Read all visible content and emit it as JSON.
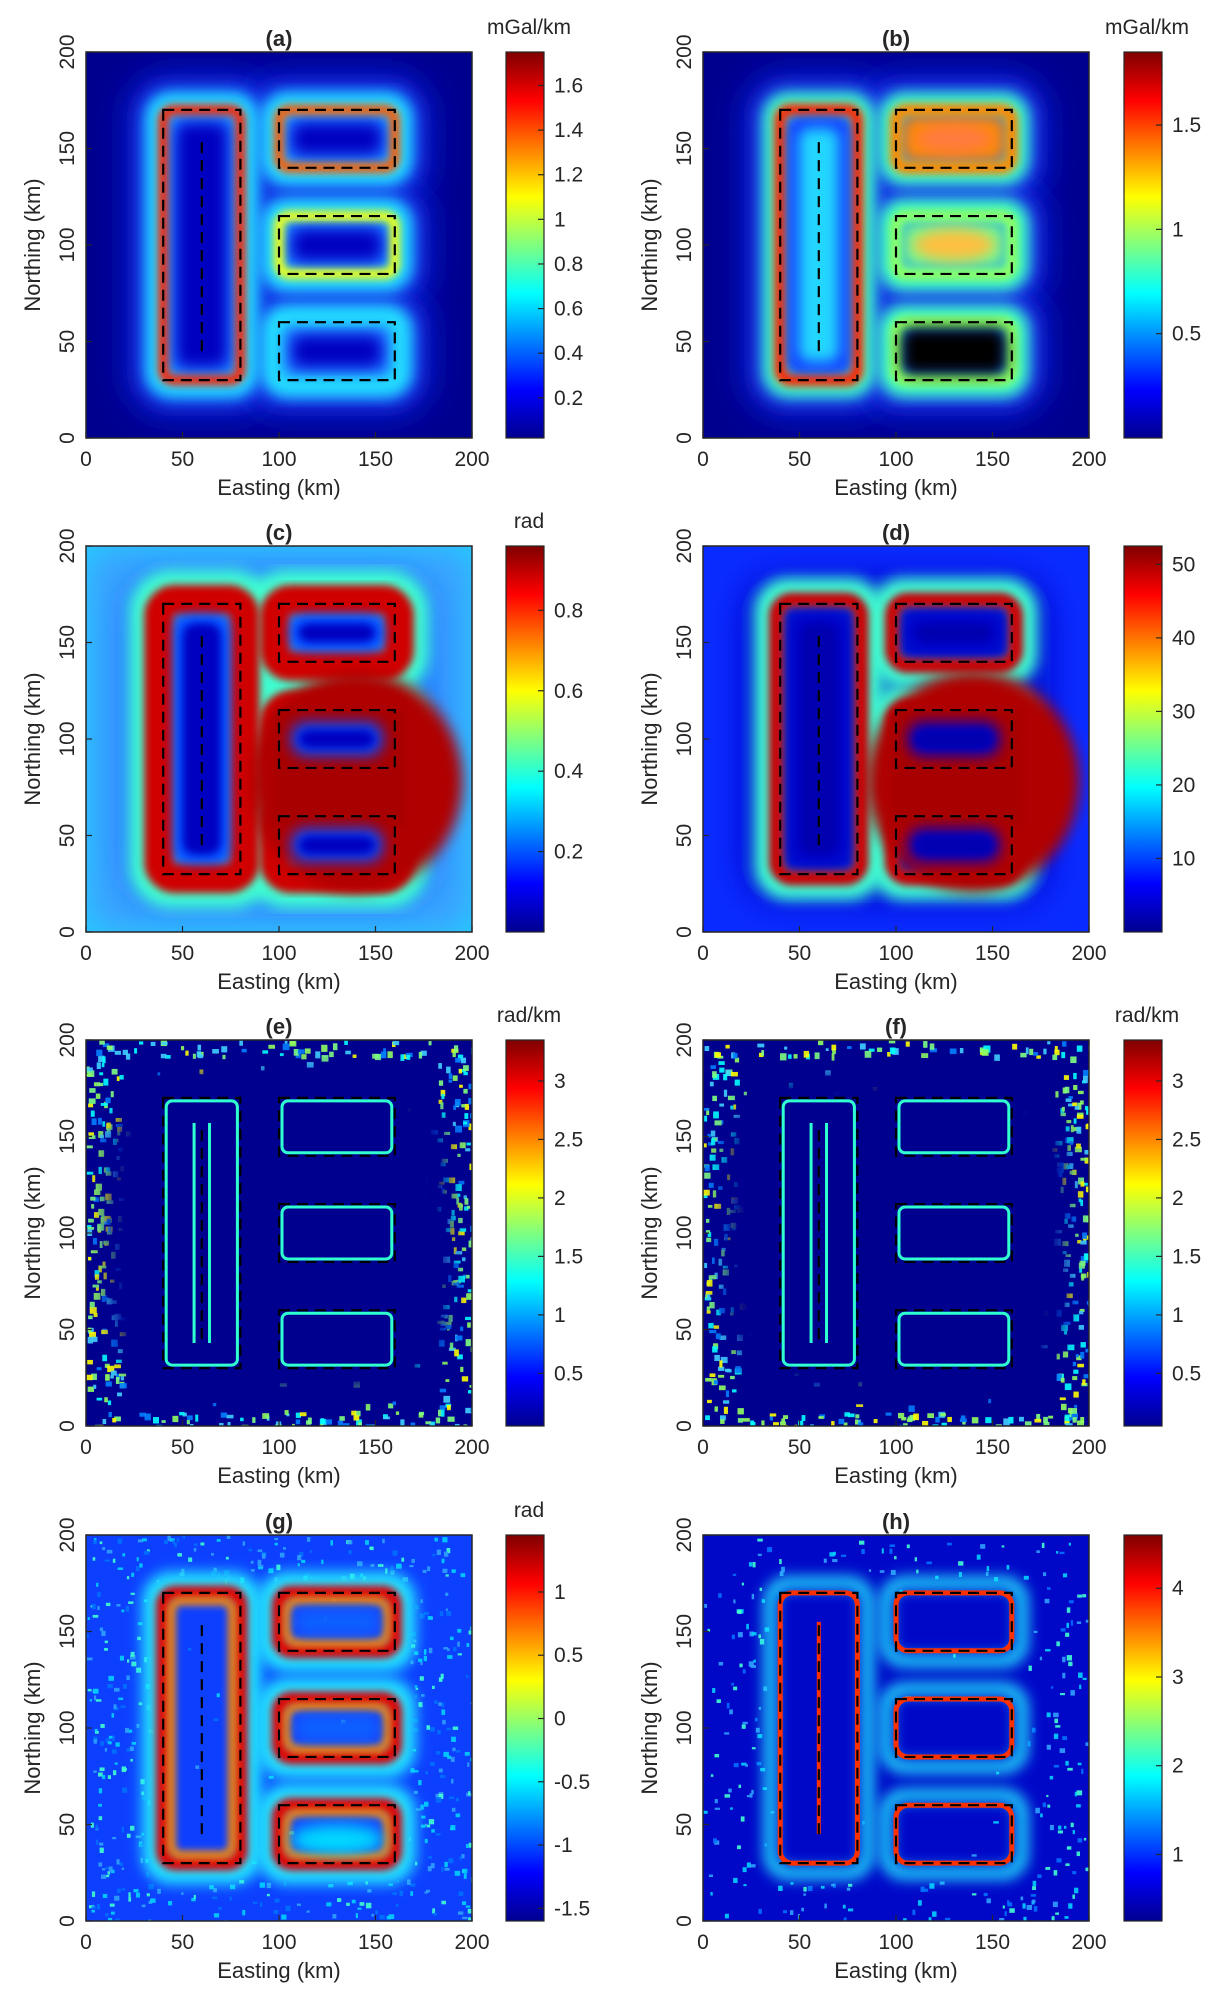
{
  "figure": {
    "xlabel": "Easting (km)",
    "ylabel": "Northing (km)",
    "xticks": [
      "0",
      "50",
      "100",
      "150",
      "200"
    ],
    "yticks": [
      "0",
      "50",
      "100",
      "150",
      "200"
    ]
  },
  "chart_data": [
    {
      "type": "heatmap",
      "title": "(a)",
      "xlabel": "Easting (km)",
      "ylabel": "Northing (km)",
      "xlim": [
        0,
        200
      ],
      "ylim": [
        0,
        200
      ],
      "colorbar": {
        "unit": "mGal/km",
        "range": [
          0.02,
          1.75
        ],
        "ticks": [
          "0.2",
          "0.4",
          "0.6",
          "0.8",
          "1",
          "1.2",
          "1.4",
          "1.6"
        ],
        "tick_values": [
          0.2,
          0.4,
          0.6,
          0.8,
          1.0,
          1.2,
          1.4,
          1.6
        ]
      },
      "source_outlines_km": [
        {
          "x": [
            40,
            80
          ],
          "y": [
            30,
            170
          ]
        },
        {
          "x": [
            60,
            60
          ],
          "y": [
            45,
            155
          ]
        },
        {
          "x": [
            100,
            160
          ],
          "y": [
            140,
            170
          ]
        },
        {
          "x": [
            100,
            160
          ],
          "y": [
            85,
            115
          ]
        },
        {
          "x": [
            100,
            160
          ],
          "y": [
            30,
            60
          ]
        }
      ]
    },
    {
      "type": "heatmap",
      "title": "(b)",
      "xlabel": "Easting (km)",
      "ylabel": "Northing (km)",
      "xlim": [
        0,
        200
      ],
      "ylim": [
        0,
        200
      ],
      "colorbar": {
        "unit": "mGal/km",
        "range": [
          0.0,
          1.85
        ],
        "ticks": [
          "0.5",
          "1",
          "1.5"
        ],
        "tick_values": [
          0.5,
          1.0,
          1.5
        ]
      },
      "source_outlines_km": [
        {
          "x": [
            40,
            80
          ],
          "y": [
            30,
            170
          ]
        },
        {
          "x": [
            60,
            60
          ],
          "y": [
            45,
            155
          ]
        },
        {
          "x": [
            100,
            160
          ],
          "y": [
            140,
            170
          ]
        },
        {
          "x": [
            100,
            160
          ],
          "y": [
            85,
            115
          ]
        },
        {
          "x": [
            100,
            160
          ],
          "y": [
            30,
            60
          ]
        }
      ]
    },
    {
      "type": "heatmap",
      "title": "(c)",
      "xlabel": "Easting (km)",
      "ylabel": "Northing (km)",
      "xlim": [
        0,
        200
      ],
      "ylim": [
        0,
        200
      ],
      "colorbar": {
        "unit": "rad",
        "range": [
          0.0,
          0.96
        ],
        "ticks": [
          "0.2",
          "0.4",
          "0.6",
          "0.8"
        ],
        "tick_values": [
          0.2,
          0.4,
          0.6,
          0.8
        ]
      },
      "source_outlines_km": [
        {
          "x": [
            40,
            80
          ],
          "y": [
            30,
            170
          ]
        },
        {
          "x": [
            60,
            60
          ],
          "y": [
            45,
            155
          ]
        },
        {
          "x": [
            100,
            160
          ],
          "y": [
            140,
            170
          ]
        },
        {
          "x": [
            100,
            160
          ],
          "y": [
            85,
            115
          ]
        },
        {
          "x": [
            100,
            160
          ],
          "y": [
            30,
            60
          ]
        }
      ]
    },
    {
      "type": "heatmap",
      "title": "(d)",
      "xlabel": "Easting (km)",
      "ylabel": "Northing (km)",
      "xlim": [
        0,
        200
      ],
      "ylim": [
        0,
        200
      ],
      "colorbar": {
        "unit": "",
        "range": [
          0.0,
          52.5
        ],
        "ticks": [
          "10",
          "20",
          "30",
          "40",
          "50"
        ],
        "tick_values": [
          10,
          20,
          30,
          40,
          50
        ]
      },
      "source_outlines_km": [
        {
          "x": [
            40,
            80
          ],
          "y": [
            30,
            170
          ]
        },
        {
          "x": [
            60,
            60
          ],
          "y": [
            45,
            155
          ]
        },
        {
          "x": [
            100,
            160
          ],
          "y": [
            140,
            170
          ]
        },
        {
          "x": [
            100,
            160
          ],
          "y": [
            85,
            115
          ]
        },
        {
          "x": [
            100,
            160
          ],
          "y": [
            30,
            60
          ]
        }
      ]
    },
    {
      "type": "heatmap",
      "title": "(e)",
      "xlabel": "Easting (km)",
      "ylabel": "Northing (km)",
      "xlim": [
        0,
        200
      ],
      "ylim": [
        0,
        200
      ],
      "colorbar": {
        "unit": "rad/km",
        "range": [
          0.05,
          3.35
        ],
        "ticks": [
          "0.5",
          "1",
          "1.5",
          "2",
          "2.5",
          "3"
        ],
        "tick_values": [
          0.5,
          1.0,
          1.5,
          2.0,
          2.5,
          3.0
        ]
      },
      "source_outlines_km": [
        {
          "x": [
            40,
            80
          ],
          "y": [
            30,
            170
          ]
        },
        {
          "x": [
            60,
            60
          ],
          "y": [
            45,
            155
          ]
        },
        {
          "x": [
            100,
            160
          ],
          "y": [
            140,
            170
          ]
        },
        {
          "x": [
            100,
            160
          ],
          "y": [
            85,
            115
          ]
        },
        {
          "x": [
            100,
            160
          ],
          "y": [
            30,
            60
          ]
        }
      ]
    },
    {
      "type": "heatmap",
      "title": "(f)",
      "xlabel": "Easting (km)",
      "ylabel": "Northing (km)",
      "xlim": [
        0,
        200
      ],
      "ylim": [
        0,
        200
      ],
      "colorbar": {
        "unit": "rad/km",
        "range": [
          0.05,
          3.35
        ],
        "ticks": [
          "0.5",
          "1",
          "1.5",
          "2",
          "2.5",
          "3"
        ],
        "tick_values": [
          0.5,
          1.0,
          1.5,
          2.0,
          2.5,
          3.0
        ]
      },
      "source_outlines_km": [
        {
          "x": [
            40,
            80
          ],
          "y": [
            30,
            170
          ]
        },
        {
          "x": [
            60,
            60
          ],
          "y": [
            45,
            155
          ]
        },
        {
          "x": [
            100,
            160
          ],
          "y": [
            140,
            170
          ]
        },
        {
          "x": [
            100,
            160
          ],
          "y": [
            85,
            115
          ]
        },
        {
          "x": [
            100,
            160
          ],
          "y": [
            30,
            60
          ]
        }
      ]
    },
    {
      "type": "heatmap",
      "title": "(g)",
      "xlabel": "Easting (km)",
      "ylabel": "Northing (km)",
      "xlim": [
        0,
        200
      ],
      "ylim": [
        0,
        200
      ],
      "colorbar": {
        "unit": "rad",
        "range": [
          -1.6,
          1.45
        ],
        "ticks": [
          "-1.5",
          "-1",
          "-0.5",
          "0",
          "0.5",
          "1"
        ],
        "tick_values": [
          -1.5,
          -1.0,
          -0.5,
          0.0,
          0.5,
          1.0
        ]
      },
      "source_outlines_km": [
        {
          "x": [
            40,
            80
          ],
          "y": [
            30,
            170
          ]
        },
        {
          "x": [
            60,
            60
          ],
          "y": [
            45,
            155
          ]
        },
        {
          "x": [
            100,
            160
          ],
          "y": [
            140,
            170
          ]
        },
        {
          "x": [
            100,
            160
          ],
          "y": [
            85,
            115
          ]
        },
        {
          "x": [
            100,
            160
          ],
          "y": [
            30,
            60
          ]
        }
      ]
    },
    {
      "type": "heatmap",
      "title": "(h)",
      "xlabel": "Easting (km)",
      "ylabel": "Northing (km)",
      "xlim": [
        0,
        200
      ],
      "ylim": [
        0,
        200
      ],
      "colorbar": {
        "unit": "",
        "range": [
          0.25,
          4.6
        ],
        "ticks": [
          "1",
          "2",
          "3",
          "4"
        ],
        "tick_values": [
          1,
          2,
          3,
          4
        ]
      },
      "source_outlines_km": [
        {
          "x": [
            40,
            80
          ],
          "y": [
            30,
            170
          ]
        },
        {
          "x": [
            60,
            60
          ],
          "y": [
            45,
            155
          ]
        },
        {
          "x": [
            100,
            160
          ],
          "y": [
            140,
            170
          ]
        },
        {
          "x": [
            100,
            160
          ],
          "y": [
            85,
            115
          ]
        },
        {
          "x": [
            100,
            160
          ],
          "y": [
            30,
            60
          ]
        }
      ]
    }
  ]
}
